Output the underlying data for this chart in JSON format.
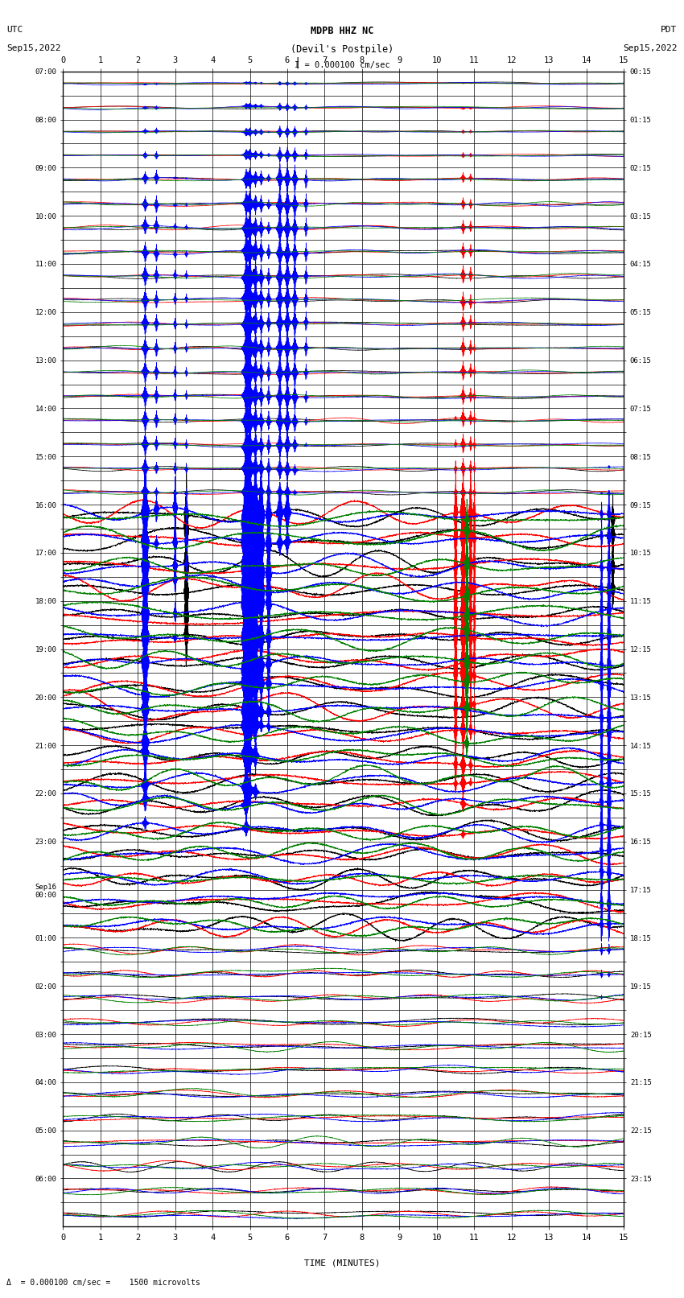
{
  "title_line1": "MDPB HHZ NC",
  "title_line2": "(Devil's Postpile)",
  "title_scale": "I = 0.000100 cm/sec",
  "left_label_line1": "UTC",
  "left_label_line2": "Sep15,2022",
  "right_label_line1": "PDT",
  "right_label_line2": "Sep15,2022",
  "bottom_label": "TIME (MINUTES)",
  "bottom_note": "  = 0.000100 cm/sec =    1500 microvolts",
  "utc_times": [
    "07:00",
    "",
    "08:00",
    "",
    "09:00",
    "",
    "10:00",
    "",
    "11:00",
    "",
    "12:00",
    "",
    "13:00",
    "",
    "14:00",
    "",
    "15:00",
    "",
    "16:00",
    "",
    "17:00",
    "",
    "18:00",
    "",
    "19:00",
    "",
    "20:00",
    "",
    "21:00",
    "",
    "22:00",
    "",
    "23:00",
    "",
    "Sep16\n00:00",
    "",
    "01:00",
    "",
    "02:00",
    "",
    "03:00",
    "",
    "04:00",
    "",
    "05:00",
    "",
    "06:00",
    ""
  ],
  "pdt_times": [
    "00:15",
    "",
    "01:15",
    "",
    "02:15",
    "",
    "03:15",
    "",
    "04:15",
    "",
    "05:15",
    "",
    "06:15",
    "",
    "07:15",
    "",
    "08:15",
    "",
    "09:15",
    "",
    "10:15",
    "",
    "11:15",
    "",
    "12:15",
    "",
    "13:15",
    "",
    "14:15",
    "",
    "15:15",
    "",
    "16:15",
    "",
    "17:15",
    "",
    "18:15",
    "",
    "19:15",
    "",
    "20:15",
    "",
    "21:15",
    "",
    "22:15",
    "",
    "23:15",
    ""
  ],
  "n_rows": 48,
  "n_hours": 24,
  "n_minutes": 15,
  "colors": [
    "black",
    "red",
    "blue",
    "green"
  ],
  "bg_color": "white",
  "grid_color": "#000000",
  "fig_width": 8.5,
  "fig_height": 16.13,
  "dpi": 100
}
